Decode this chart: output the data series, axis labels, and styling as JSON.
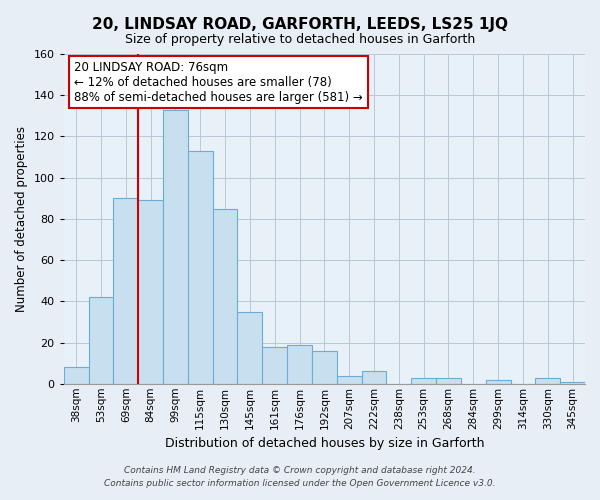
{
  "title": "20, LINDSAY ROAD, GARFORTH, LEEDS, LS25 1JQ",
  "subtitle": "Size of property relative to detached houses in Garforth",
  "xlabel": "Distribution of detached houses by size in Garforth",
  "ylabel": "Number of detached properties",
  "bar_labels": [
    "38sqm",
    "53sqm",
    "69sqm",
    "84sqm",
    "99sqm",
    "115sqm",
    "130sqm",
    "145sqm",
    "161sqm",
    "176sqm",
    "192sqm",
    "207sqm",
    "222sqm",
    "238sqm",
    "253sqm",
    "268sqm",
    "284sqm",
    "299sqm",
    "314sqm",
    "330sqm",
    "345sqm"
  ],
  "bar_values": [
    8,
    42,
    90,
    89,
    133,
    113,
    85,
    35,
    18,
    19,
    16,
    4,
    6,
    0,
    3,
    3,
    0,
    2,
    0,
    3,
    1
  ],
  "bar_color": "#c8dff0",
  "bar_edge_color": "#6aaed6",
  "highlight_line_color": "#cc0000",
  "annotation_text": "20 LINDSAY ROAD: 76sqm\n← 12% of detached houses are smaller (78)\n88% of semi-detached houses are larger (581) →",
  "annotation_box_color": "#ffffff",
  "annotation_box_edge": "#cc0000",
  "ylim": [
    0,
    160
  ],
  "yticks": [
    0,
    20,
    40,
    60,
    80,
    100,
    120,
    140,
    160
  ],
  "footnote1": "Contains HM Land Registry data © Crown copyright and database right 2024.",
  "footnote2": "Contains public sector information licensed under the Open Government Licence v3.0.",
  "bg_color": "#e8eef5",
  "plot_bg_color": "#e8f0f8"
}
